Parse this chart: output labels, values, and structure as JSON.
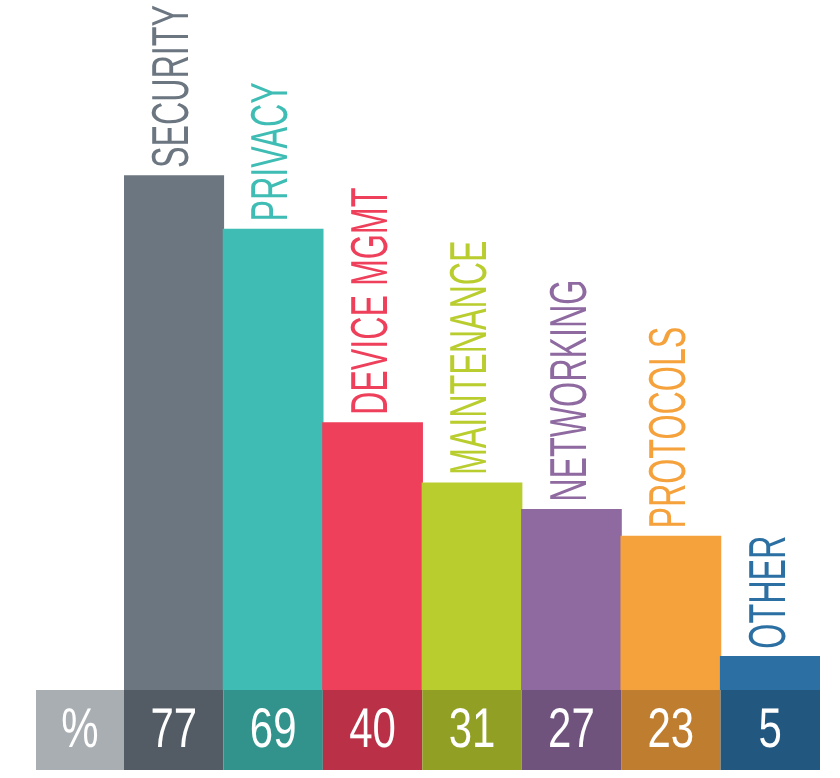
{
  "chart_data": {
    "type": "bar",
    "ylabel": "%",
    "categories": [
      "SECURITY",
      "PRIVACY",
      "DEVICE MGMT",
      "MAINTENANCE",
      "NETWORKING",
      "PROTOCOLS",
      "OTHER"
    ],
    "values": [
      77,
      69,
      40,
      31,
      27,
      23,
      5
    ],
    "colors": [
      "#6b7681",
      "#3fbdb4",
      "#ee3f5b",
      "#bacd2f",
      "#8e6aa0",
      "#f5a23c",
      "#2c70a3"
    ],
    "data_labels": true
  }
}
